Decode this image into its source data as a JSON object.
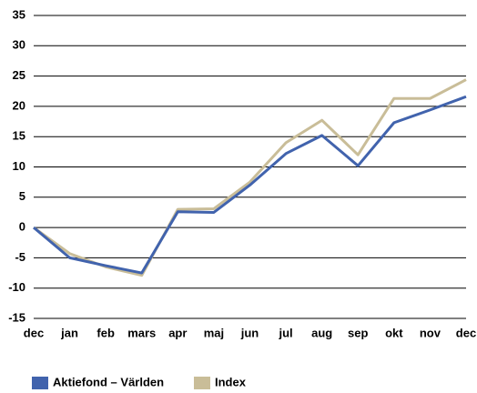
{
  "chart_data": {
    "type": "line",
    "categories": [
      "dec",
      "jan",
      "feb",
      "mars",
      "apr",
      "maj",
      "jun",
      "jul",
      "aug",
      "sep",
      "okt",
      "nov",
      "dec"
    ],
    "series": [
      {
        "name": "Aktiefond – Världen",
        "color": "#4163ad",
        "values": [
          0,
          -5,
          -6.3,
          -7.5,
          2.6,
          2.5,
          7,
          12.2,
          15.2,
          10.2,
          17.3,
          19.4,
          21.6
        ]
      },
      {
        "name": "Index",
        "color": "#c9bd98",
        "values": [
          0,
          -4.3,
          -6.5,
          -7.9,
          3,
          3.1,
          7.5,
          14,
          17.7,
          12,
          21.3,
          21.3,
          24.4
        ]
      }
    ],
    "ylim": [
      -15,
      35
    ],
    "yticks": [
      -15,
      -10,
      -5,
      0,
      5,
      10,
      15,
      20,
      25,
      30,
      35
    ],
    "grid": true
  }
}
